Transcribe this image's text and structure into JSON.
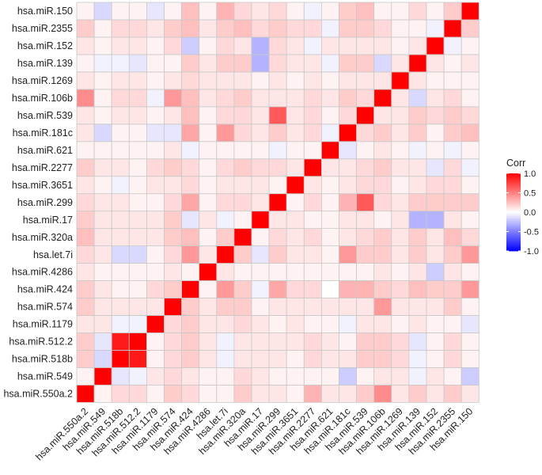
{
  "chart_data": {
    "type": "heatmap",
    "title": "",
    "xlabel": "",
    "ylabel": "",
    "labels": [
      "hsa.miR.550a.2",
      "hsa.miR.549",
      "hsa.miR.518b",
      "hsa.miR.512.2",
      "hsa.miR.1179",
      "hsa.miR.574",
      "hsa.miR.424",
      "hsa.miR.4286",
      "hsa.let.7i",
      "hsa.miR.320a",
      "hsa.miR.17",
      "hsa.miR.299",
      "hsa.miR.3651",
      "hsa.miR.2277",
      "hsa.miR.621",
      "hsa.miR.181c",
      "hsa.miR.539",
      "hsa.miR.106b",
      "hsa.miR.1269",
      "hsa.miR.139",
      "hsa.miR.152",
      "hsa.miR.2355",
      "hsa.miR.150"
    ],
    "note": "values[i][j]: row i = y-axis label (from bottom), column j = x-axis label (from left); same ordering on both axes",
    "values": [
      [
        1.0,
        0.05,
        0.15,
        0.15,
        0.05,
        0.2,
        0.15,
        0.05,
        0.05,
        0.2,
        0.1,
        0.1,
        0.05,
        0.3,
        0.1,
        0.1,
        0.2,
        0.45,
        0.1,
        0.2,
        0.1,
        0.2,
        0.1
      ],
      [
        0.05,
        1.0,
        -0.1,
        -0.05,
        0.1,
        0.15,
        0.1,
        0.05,
        0.05,
        0.15,
        0.1,
        0.05,
        0.05,
        0.05,
        0.05,
        -0.2,
        0.05,
        0.1,
        0.1,
        -0.05,
        0.1,
        0.05,
        -0.2
      ],
      [
        0.2,
        -0.15,
        1.0,
        0.9,
        0.05,
        0.15,
        0.2,
        0.1,
        -0.05,
        0.1,
        0.1,
        0.1,
        0.05,
        0.15,
        0.1,
        0.1,
        0.2,
        0.2,
        0.15,
        -0.05,
        0.05,
        0.15,
        0.05
      ],
      [
        0.2,
        -0.1,
        0.9,
        1.0,
        0.05,
        0.15,
        0.2,
        0.1,
        -0.05,
        0.1,
        0.1,
        0.1,
        0.1,
        0.15,
        0.1,
        0.05,
        0.2,
        0.2,
        0.15,
        -0.1,
        0.05,
        0.15,
        0.05
      ],
      [
        0.1,
        0.1,
        -0.05,
        -0.05,
        1.0,
        0.15,
        0.2,
        0.1,
        0.1,
        0.15,
        0.1,
        0.05,
        0.1,
        0.05,
        0.05,
        -0.05,
        0.1,
        0.1,
        0.05,
        0.1,
        0.05,
        0.05,
        -0.1
      ],
      [
        0.2,
        0.1,
        0.1,
        0.1,
        0.1,
        1.0,
        0.2,
        0.1,
        0.2,
        0.2,
        0.05,
        0.1,
        0.1,
        0.1,
        0.1,
        0.1,
        0.1,
        0.4,
        0.1,
        0.1,
        0.1,
        0.2,
        0.05
      ],
      [
        0.2,
        0.1,
        0.05,
        0.05,
        0.15,
        0.2,
        1.0,
        0.05,
        0.4,
        0.2,
        -0.05,
        0.35,
        0.15,
        0.15,
        0.0,
        0.3,
        0.3,
        0.2,
        0.15,
        0.25,
        0.2,
        0.2,
        0.4
      ],
      [
        0.1,
        0.05,
        0.05,
        0.05,
        0.05,
        0.1,
        0.05,
        1.0,
        0.1,
        0.05,
        0.05,
        0.05,
        0.05,
        0.05,
        0.05,
        0.05,
        0.05,
        0.1,
        0.05,
        0.1,
        -0.2,
        0.1,
        0.05
      ],
      [
        0.15,
        0.1,
        -0.15,
        -0.15,
        0.05,
        0.15,
        0.4,
        0.1,
        1.0,
        0.2,
        -0.1,
        0.2,
        0.1,
        0.1,
        0.05,
        0.4,
        0.2,
        0.2,
        0.1,
        0.2,
        0.1,
        0.2,
        0.4
      ],
      [
        0.25,
        0.1,
        0.1,
        0.1,
        0.1,
        0.2,
        0.25,
        0.05,
        0.2,
        1.0,
        0.05,
        0.15,
        0.1,
        0.15,
        0.05,
        0.1,
        0.15,
        0.2,
        0.1,
        0.2,
        0.1,
        0.25,
        0.15
      ],
      [
        0.2,
        0.1,
        0.1,
        0.1,
        0.1,
        0.2,
        -0.1,
        0.1,
        -0.05,
        0.05,
        1.0,
        0.1,
        0.1,
        0.05,
        0.05,
        0.1,
        0.1,
        0.05,
        0.1,
        -0.3,
        -0.3,
        0.1,
        0.05
      ],
      [
        0.15,
        0.1,
        0.1,
        0.05,
        0.05,
        0.15,
        0.35,
        0.05,
        0.15,
        0.15,
        0.1,
        1.0,
        0.05,
        0.15,
        0.05,
        0.3,
        0.65,
        0.15,
        0.1,
        0.2,
        0.2,
        0.2,
        0.2
      ],
      [
        0.1,
        0.05,
        -0.05,
        0.05,
        0.1,
        0.1,
        0.15,
        0.05,
        0.1,
        0.1,
        0.1,
        0.05,
        1.0,
        0.1,
        0.05,
        0.1,
        0.15,
        0.15,
        0.05,
        0.1,
        0.15,
        0.15,
        0.05
      ],
      [
        0.2,
        0.1,
        0.1,
        0.05,
        0.15,
        0.2,
        0.15,
        0.05,
        0.15,
        0.2,
        0.15,
        0.15,
        0.1,
        1.0,
        0.1,
        0.1,
        0.15,
        0.2,
        0.1,
        0.1,
        -0.1,
        0.15,
        -0.05
      ],
      [
        0.05,
        0.05,
        0.05,
        0.05,
        0.05,
        0.1,
        -0.05,
        0.05,
        0.05,
        0.05,
        0.05,
        -0.05,
        0.05,
        0.05,
        1.0,
        -0.1,
        0.05,
        0.1,
        0.05,
        -0.05,
        0.05,
        -0.05,
        0.05
      ],
      [
        0.1,
        -0.15,
        0.05,
        0.05,
        -0.1,
        -0.1,
        0.35,
        0.05,
        0.4,
        0.15,
        0.1,
        0.2,
        0.1,
        0.15,
        -0.05,
        1.0,
        0.15,
        0.2,
        0.1,
        0.2,
        0.05,
        0.2,
        0.25
      ],
      [
        0.1,
        0.05,
        0.1,
        0.1,
        0.05,
        0.1,
        0.25,
        0.05,
        0.15,
        0.15,
        0.1,
        0.65,
        0.1,
        0.15,
        0.05,
        0.15,
        1.0,
        0.1,
        0.1,
        0.2,
        0.15,
        0.2,
        0.15
      ],
      [
        0.45,
        0.05,
        0.15,
        0.15,
        -0.05,
        0.4,
        0.25,
        0.1,
        0.15,
        0.2,
        0.1,
        0.1,
        0.1,
        0.15,
        0.1,
        0.2,
        0.15,
        1.0,
        0.1,
        -0.15,
        0.1,
        0.15,
        0.05
      ],
      [
        0.1,
        0.05,
        0.1,
        0.1,
        0.05,
        0.1,
        0.15,
        0.1,
        0.1,
        0.1,
        0.05,
        0.1,
        0.05,
        0.1,
        0.05,
        0.1,
        0.1,
        0.1,
        1.0,
        0.1,
        0.05,
        0.05,
        0.05
      ],
      [
        0.05,
        -0.05,
        -0.05,
        -0.1,
        0.05,
        0.05,
        0.2,
        0.1,
        0.2,
        0.2,
        -0.3,
        0.15,
        0.1,
        0.1,
        -0.05,
        0.2,
        0.2,
        -0.15,
        0.1,
        1.0,
        0.1,
        0.05,
        0.1
      ],
      [
        0.1,
        0.05,
        0.1,
        0.1,
        0.05,
        0.15,
        -0.2,
        0.05,
        0.15,
        0.1,
        -0.3,
        0.15,
        0.1,
        -0.05,
        0.1,
        0.1,
        0.1,
        0.1,
        0.05,
        0.1,
        1.0,
        -0.05,
        0.05
      ],
      [
        0.2,
        0.05,
        0.15,
        0.15,
        0.1,
        0.2,
        0.25,
        0.1,
        0.2,
        0.25,
        0.15,
        0.2,
        0.15,
        0.15,
        -0.05,
        0.2,
        0.2,
        0.15,
        0.05,
        0.05,
        -0.05,
        1.0,
        0.2
      ],
      [
        0.05,
        -0.15,
        0.05,
        0.05,
        -0.1,
        0.05,
        0.25,
        0.05,
        0.3,
        0.15,
        0.1,
        0.15,
        0.05,
        -0.05,
        0.05,
        0.2,
        0.25,
        0.05,
        0.05,
        0.15,
        0.05,
        0.2,
        1.0
      ]
    ],
    "legend": {
      "title": "Corr",
      "ticks": [
        "1.0",
        "0.5",
        "0.0",
        "-0.5",
        "-1.0"
      ],
      "tick_values": [
        1.0,
        0.5,
        0.0,
        -0.5,
        -1.0
      ],
      "range": [
        -1,
        1
      ],
      "colors": {
        "low": "#0000ff",
        "mid": "#ffffff",
        "high": "#ff0000"
      },
      "placement": "right"
    },
    "grid_color": "#c8c8c8"
  }
}
